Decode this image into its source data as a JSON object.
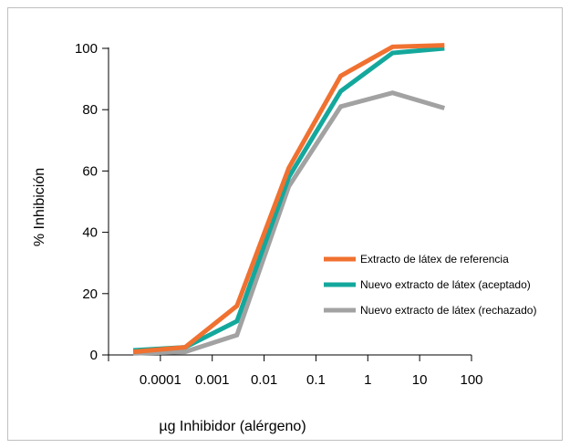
{
  "chart_data": {
    "type": "line",
    "x_scale": "log",
    "xlabel": "µg Inhibidor (alérgeno)",
    "ylabel": "% Inhibición",
    "xlim": [
      1e-05,
      100
    ],
    "ylim": [
      0,
      100
    ],
    "x_ticks": [
      0.0001,
      0.001,
      0.01,
      0.1,
      1,
      10,
      100
    ],
    "x_tick_labels": [
      "0.0001",
      "0.001",
      "0.01",
      "0.1",
      "1",
      "10",
      "100"
    ],
    "y_ticks": [
      0,
      20,
      40,
      60,
      80,
      100
    ],
    "y_tick_labels": [
      "0",
      "20",
      "40",
      "60",
      "80",
      "100"
    ],
    "grid": false,
    "legend_position": "center-right",
    "x": [
      3e-05,
      0.0003,
      0.003,
      0.03,
      0.3,
      3,
      30
    ],
    "series": [
      {
        "name": "Extracto de látex de referencia",
        "color": "#f07130",
        "values": [
          1,
          2.5,
          16,
          61,
          91,
          100.5,
          101
        ]
      },
      {
        "name": "Nuevo extracto de látex (aceptado)",
        "color": "#14a89c",
        "values": [
          1.5,
          2.5,
          11,
          58,
          86,
          98.5,
          100
        ]
      },
      {
        "name": "Nuevo extracto de látex (rechazado)",
        "color": "#a2a2a2",
        "values": [
          0.5,
          1,
          6.5,
          55,
          81,
          85.5,
          80.5
        ]
      }
    ]
  }
}
